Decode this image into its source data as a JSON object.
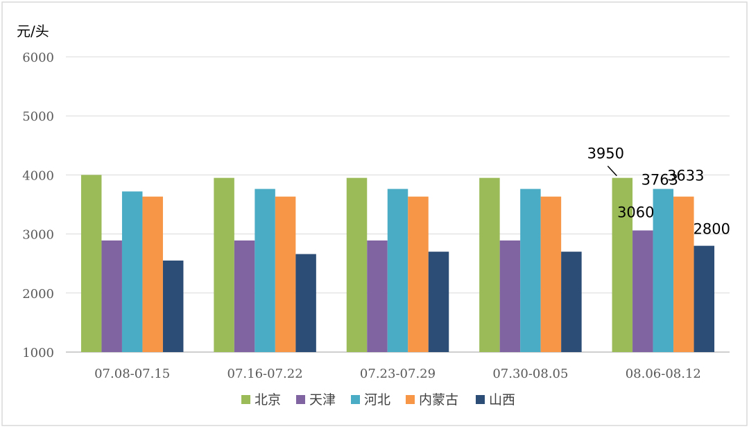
{
  "chart_data": {
    "type": "bar",
    "y_unit": "元/头",
    "categories": [
      "07.08-07.15",
      "07.16-07.22",
      "07.23-07.29",
      "07.30-08.05",
      "08.06-08.12"
    ],
    "series": [
      {
        "name": "北京",
        "color": "#9bbb59",
        "values": [
          4000,
          3950,
          3950,
          3950,
          3950
        ]
      },
      {
        "name": "天津",
        "color": "#8064a2",
        "values": [
          2890,
          2890,
          2890,
          2890,
          3060
        ]
      },
      {
        "name": "河北",
        "color": "#4bacc6",
        "values": [
          3720,
          3763,
          3763,
          3763,
          3763
        ]
      },
      {
        "name": "内蒙古",
        "color": "#f79646",
        "values": [
          3633,
          3633,
          3633,
          3633,
          3633
        ]
      },
      {
        "name": "山西",
        "color": "#2c4d75",
        "values": [
          2550,
          2660,
          2700,
          2700,
          2800
        ]
      }
    ],
    "data_labels": [
      {
        "series": 0,
        "category": 4,
        "text": "3950"
      },
      {
        "series": 1,
        "category": 4,
        "text": "3060"
      },
      {
        "series": 2,
        "category": 4,
        "text": "3763"
      },
      {
        "series": 3,
        "category": 4,
        "text": "3633"
      },
      {
        "series": 4,
        "category": 4,
        "text": "2800"
      }
    ],
    "yticks": [
      1000,
      2000,
      3000,
      4000,
      5000,
      6000
    ],
    "ylim": [
      1000,
      6000
    ],
    "grid": true,
    "legend_position": "bottom"
  }
}
